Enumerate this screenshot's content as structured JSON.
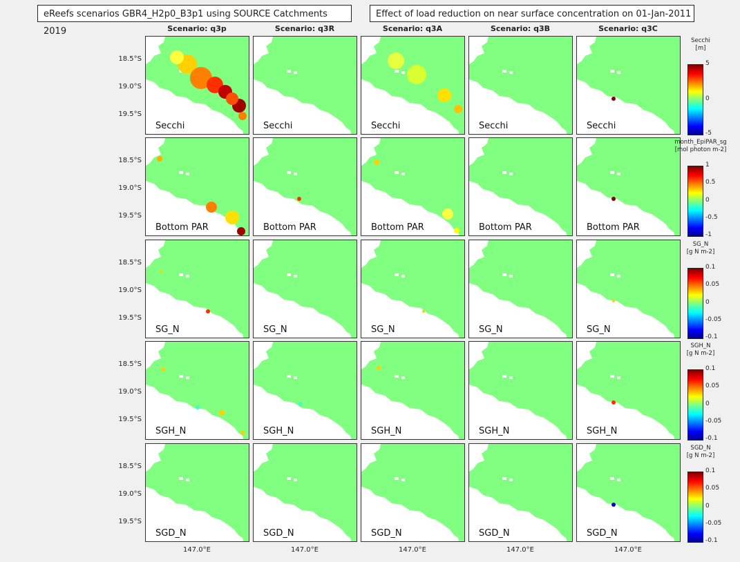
{
  "titles": {
    "left": "eReefs scenarios GBR4_H2p0_B3p1 using SOURCE Catchments 2019",
    "right": "Effect of load reduction on near surface concentration on 01-Jan-2011"
  },
  "chart_data": {
    "type": "heatmap",
    "columns": [
      "Scenario: q3p",
      "Scenario: q3R",
      "Scenario: q3A",
      "Scenario: q3B",
      "Scenario: q3C"
    ],
    "rows": [
      {
        "label": "Secchi",
        "cb_title": [
          "Secchi",
          "[m]"
        ],
        "ticks": [
          "5",
          "0",
          "-5"
        ],
        "range": [
          -5,
          5
        ]
      },
      {
        "label": "Bottom PAR",
        "cb_title": [
          "month_EpiPAR_sg",
          "[mol photon m-2]"
        ],
        "ticks": [
          "1",
          "0.5",
          "0",
          "-0.5",
          "-1"
        ],
        "range": [
          -1,
          1
        ]
      },
      {
        "label": "SG_N",
        "cb_title": [
          "SG_N",
          "[g N m-2]"
        ],
        "ticks": [
          "0.1",
          "0.05",
          "0",
          "-0.05",
          "-0.1"
        ],
        "range": [
          -0.1,
          0.1
        ]
      },
      {
        "label": "SGH_N",
        "cb_title": [
          "SGH_N",
          "[g N m-2]"
        ],
        "ticks": [
          "0.1",
          "0.05",
          "0",
          "-0.05",
          "-0.1"
        ],
        "range": [
          -0.1,
          0.1
        ]
      },
      {
        "label": "SGD_N",
        "cb_title": [
          "SGD_N",
          "[g N m-2]"
        ],
        "ticks": [
          "0.1",
          "0.05",
          "0",
          "-0.05",
          "-0.1"
        ],
        "range": [
          -0.1,
          0.1
        ]
      }
    ],
    "yticks": [
      "18.5°S",
      "19.0°S",
      "19.5°S"
    ],
    "xtick": "147.0°E",
    "colormap": "jet"
  }
}
